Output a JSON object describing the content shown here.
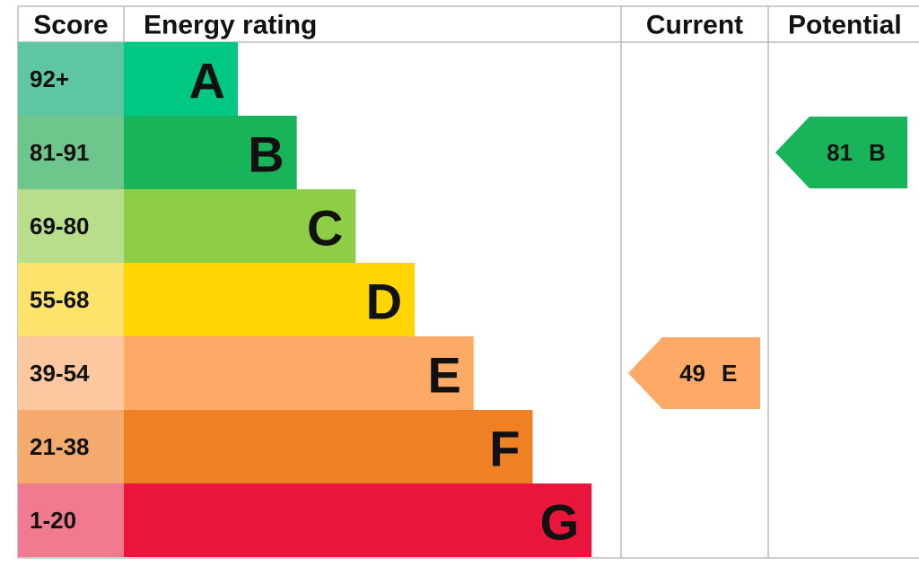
{
  "chart_data": {
    "type": "energy-rating",
    "headers": {
      "score": "Score",
      "rating": "Energy rating",
      "current": "Current",
      "potential": "Potential"
    },
    "bands": [
      {
        "score": "92+",
        "letter": "A",
        "color": "#00c781",
        "score_color": "#5ec6a0"
      },
      {
        "score": "81-91",
        "letter": "B",
        "color": "#19b459",
        "score_color": "#6fc68c"
      },
      {
        "score": "69-80",
        "letter": "C",
        "color": "#8dce46",
        "score_color": "#b8de8c"
      },
      {
        "score": "55-68",
        "letter": "D",
        "color": "#ffd500",
        "score_color": "#fde36c"
      },
      {
        "score": "39-54",
        "letter": "E",
        "color": "#fcaa65",
        "score_color": "#fdc8a0"
      },
      {
        "score": "21-38",
        "letter": "F",
        "color": "#ef8023",
        "score_color": "#f3aa6c"
      },
      {
        "score": "1-20",
        "letter": "G",
        "color": "#e9153b",
        "score_color": "#f07a8e"
      }
    ],
    "current": {
      "value": 49,
      "letter": "E"
    },
    "potential": {
      "value": 81,
      "letter": "B"
    }
  }
}
